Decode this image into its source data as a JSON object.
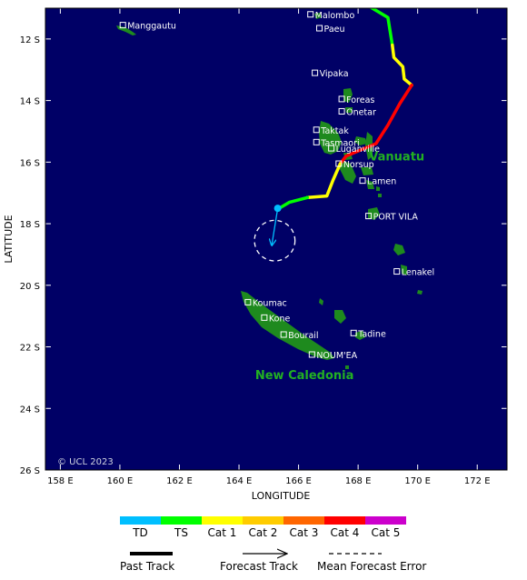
{
  "map": {
    "lon_range": [
      157.5,
      173
    ],
    "lat_range": [
      -26,
      -11
    ],
    "ocean_color": "#000066",
    "land_color": "#1e8a1e",
    "x_ticks": [
      {
        "value": 158,
        "label": "158 E"
      },
      {
        "value": 160,
        "label": "160 E"
      },
      {
        "value": 162,
        "label": "162 E"
      },
      {
        "value": 164,
        "label": "164 E"
      },
      {
        "value": 166,
        "label": "166 E"
      },
      {
        "value": 168,
        "label": "168 E"
      },
      {
        "value": 170,
        "label": "170 E"
      },
      {
        "value": 172,
        "label": "172 E"
      }
    ],
    "y_ticks": [
      {
        "value": -12,
        "label": "12 S"
      },
      {
        "value": -14,
        "label": "14 S"
      },
      {
        "value": -16,
        "label": "16 S"
      },
      {
        "value": -18,
        "label": "18 S"
      },
      {
        "value": -20,
        "label": "20 S"
      },
      {
        "value": -22,
        "label": "22 S"
      },
      {
        "value": -24,
        "label": "24 S"
      },
      {
        "value": -26,
        "label": "26 S"
      }
    ],
    "xlabel": "LONGITUDE",
    "ylabel": "LATITUDE",
    "copyright": "© UCL 2023",
    "regions": [
      {
        "name": "Vanuatu",
        "lon": 169.3,
        "lat": -15.95
      },
      {
        "name": "New Caledonia",
        "lon": 166.2,
        "lat": -23.05
      }
    ],
    "places": [
      {
        "name": "Manggautu",
        "lon": 160.1,
        "lat": -11.55
      },
      {
        "name": "Malombo",
        "lon": 166.4,
        "lat": -11.2
      },
      {
        "name": "Paeu",
        "lon": 166.7,
        "lat": -11.65
      },
      {
        "name": "Vipaka",
        "lon": 166.55,
        "lat": -13.1
      },
      {
        "name": "Foreas",
        "lon": 167.45,
        "lat": -13.95
      },
      {
        "name": "Onetar",
        "lon": 167.45,
        "lat": -14.35
      },
      {
        "name": "Taktak",
        "lon": 166.6,
        "lat": -14.95
      },
      {
        "name": "Tasmaori",
        "lon": 166.6,
        "lat": -15.35
      },
      {
        "name": "Luganville",
        "lon": 167.1,
        "lat": -15.55
      },
      {
        "name": "Norsup",
        "lon": 167.35,
        "lat": -16.05
      },
      {
        "name": "Lamen",
        "lon": 168.15,
        "lat": -16.6
      },
      {
        "name": "PORT VILA",
        "lon": 168.35,
        "lat": -17.75
      },
      {
        "name": "Lenakel",
        "lon": 169.3,
        "lat": -19.55
      },
      {
        "name": "Koumac",
        "lon": 164.3,
        "lat": -20.55
      },
      {
        "name": "Kone",
        "lon": 164.85,
        "lat": -21.05
      },
      {
        "name": "Bourail",
        "lon": 165.5,
        "lat": -21.6
      },
      {
        "name": "Tadine",
        "lon": 167.85,
        "lat": -21.55
      },
      {
        "name": "NOUM'EA",
        "lon": 166.45,
        "lat": -22.25
      }
    ]
  },
  "track": {
    "past_segments": [
      {
        "category": "TS",
        "points": [
          [
            168.3,
            -10.9
          ],
          [
            169.0,
            -11.3
          ],
          [
            169.15,
            -12.2
          ]
        ]
      },
      {
        "category": "Cat 1",
        "points": [
          [
            169.15,
            -12.2
          ],
          [
            169.2,
            -12.6
          ],
          [
            169.5,
            -12.9
          ],
          [
            169.55,
            -13.3
          ],
          [
            169.8,
            -13.5
          ]
        ]
      },
      {
        "category": "Cat 4",
        "points": [
          [
            169.8,
            -13.5
          ],
          [
            169.4,
            -14.1
          ],
          [
            169.0,
            -14.8
          ],
          [
            168.6,
            -15.4
          ],
          [
            168.1,
            -15.6
          ],
          [
            167.6,
            -15.8
          ],
          [
            167.4,
            -16.05
          ]
        ]
      },
      {
        "category": "Cat 1",
        "points": [
          [
            167.4,
            -16.05
          ],
          [
            167.15,
            -16.6
          ],
          [
            166.95,
            -17.1
          ],
          [
            166.3,
            -17.15
          ]
        ]
      },
      {
        "category": "TS",
        "points": [
          [
            166.3,
            -17.15
          ],
          [
            165.7,
            -17.3
          ],
          [
            165.35,
            -17.5
          ]
        ]
      },
      {
        "category": "TD",
        "points": [
          [
            165.35,
            -17.5
          ],
          [
            165.3,
            -17.5
          ]
        ]
      }
    ],
    "current_position": {
      "category": "TD",
      "lon": 165.3,
      "lat": -17.5
    },
    "forecast": {
      "points": [
        [
          165.3,
          -17.5
        ],
        [
          165.1,
          -18.7
        ]
      ]
    },
    "error_circle": {
      "lon": 165.2,
      "lat": -18.55,
      "radius_deg": 0.68
    }
  },
  "legend": {
    "categories": [
      {
        "label": "TD",
        "color": "#00bfff"
      },
      {
        "label": "TS",
        "color": "#00ff00"
      },
      {
        "label": "Cat 1",
        "color": "#ffff00"
      },
      {
        "label": "Cat 2",
        "color": "#ffcc00"
      },
      {
        "label": "Cat 3",
        "color": "#ff6600"
      },
      {
        "label": "Cat 4",
        "color": "#ff0000"
      },
      {
        "label": "Cat 5",
        "color": "#cc00cc"
      }
    ],
    "past_track_label": "Past Track",
    "forecast_track_label": "Forecast Track",
    "error_label": "Mean Forecast Error"
  }
}
